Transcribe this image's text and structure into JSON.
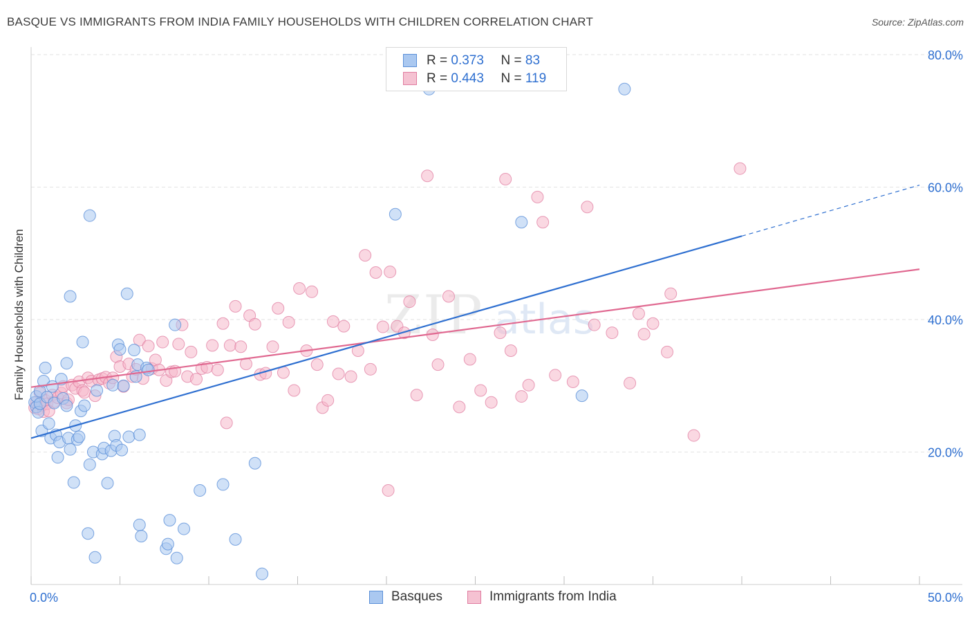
{
  "header": {
    "title": "BASQUE VS IMMIGRANTS FROM INDIA FAMILY HOUSEHOLDS WITH CHILDREN CORRELATION CHART",
    "source": "Source: ZipAtlas.com"
  },
  "watermark": {
    "zip": "ZIP",
    "atlas": "atlas"
  },
  "legend": {
    "r_label": "R =",
    "n_label": "N =",
    "basques": {
      "r": "0.373",
      "n": "83"
    },
    "india": {
      "r": "0.443",
      "n": "119"
    }
  },
  "bottom_legend": {
    "basques": "Basques",
    "india": "Immigrants from India"
  },
  "colors": {
    "basques_fill": "#aac8f0",
    "basques_stroke": "#5a8fd8",
    "basques_line": "#2e6fd0",
    "india_fill": "#f5b8cb",
    "india_stroke": "#e07ca0",
    "india_line": "#e06890",
    "axis_text": "#2e6fd0",
    "grid": "#e2e2e2"
  },
  "chart_data": {
    "type": "scatter",
    "title": "BASQUE VS IMMIGRANTS FROM INDIA FAMILY HOUSEHOLDS WITH CHILDREN CORRELATION CHART",
    "xlabel": "",
    "ylabel": "Family Households with Children",
    "xlim": [
      0,
      50
    ],
    "ylim": [
      0,
      80
    ],
    "x_tick_labels": [
      "0.0%",
      "50.0%"
    ],
    "y_ticks": [
      20,
      40,
      60,
      80
    ],
    "y_tick_labels": [
      "20.0%",
      "40.0%",
      "60.0%",
      "80.0%"
    ],
    "grid": true,
    "legend_position": "top-center",
    "series": [
      {
        "name": "Basques",
        "trend": {
          "x": [
            0,
            40
          ],
          "y": [
            22.1,
            52.6
          ],
          "dashed_to": [
            50,
            60.3
          ]
        },
        "points": [
          [
            0.2,
            27.5
          ],
          [
            0.3,
            26.8
          ],
          [
            0.3,
            28.4
          ],
          [
            0.4,
            26.0
          ],
          [
            0.5,
            27.3
          ],
          [
            0.5,
            29.2
          ],
          [
            0.6,
            23.2
          ],
          [
            0.7,
            30.7
          ],
          [
            0.8,
            32.7
          ],
          [
            0.9,
            28.3
          ],
          [
            1.0,
            24.3
          ],
          [
            1.1,
            22.1
          ],
          [
            1.2,
            29.9
          ],
          [
            1.3,
            27.4
          ],
          [
            1.4,
            22.6
          ],
          [
            1.5,
            19.2
          ],
          [
            1.6,
            21.5
          ],
          [
            1.7,
            31.0
          ],
          [
            1.8,
            28.1
          ],
          [
            2.0,
            33.4
          ],
          [
            2.0,
            27.0
          ],
          [
            2.1,
            22.1
          ],
          [
            2.2,
            43.5
          ],
          [
            2.2,
            20.4
          ],
          [
            2.4,
            15.4
          ],
          [
            2.5,
            24.0
          ],
          [
            2.6,
            21.9
          ],
          [
            2.7,
            22.3
          ],
          [
            2.8,
            26.2
          ],
          [
            2.9,
            36.6
          ],
          [
            3.0,
            27.0
          ],
          [
            3.2,
            7.7
          ],
          [
            3.3,
            55.7
          ],
          [
            3.3,
            18.1
          ],
          [
            3.5,
            20.0
          ],
          [
            3.6,
            4.1
          ],
          [
            3.7,
            29.3
          ],
          [
            4.0,
            19.7
          ],
          [
            4.1,
            20.6
          ],
          [
            4.3,
            15.3
          ],
          [
            4.5,
            20.2
          ],
          [
            4.6,
            30.1
          ],
          [
            4.7,
            22.4
          ],
          [
            4.8,
            21.0
          ],
          [
            4.9,
            36.2
          ],
          [
            5.0,
            35.5
          ],
          [
            5.1,
            20.3
          ],
          [
            5.2,
            30.0
          ],
          [
            5.4,
            43.9
          ],
          [
            5.5,
            22.3
          ],
          [
            5.8,
            35.4
          ],
          [
            5.9,
            31.4
          ],
          [
            6.0,
            33.2
          ],
          [
            6.1,
            22.6
          ],
          [
            6.1,
            9.0
          ],
          [
            6.2,
            7.3
          ],
          [
            6.5,
            32.7
          ],
          [
            6.6,
            32.4
          ],
          [
            7.6,
            5.4
          ],
          [
            7.7,
            6.1
          ],
          [
            7.8,
            9.7
          ],
          [
            8.1,
            39.2
          ],
          [
            8.2,
            4.0
          ],
          [
            8.6,
            8.4
          ],
          [
            9.5,
            14.2
          ],
          [
            10.8,
            15.1
          ],
          [
            11.5,
            6.8
          ],
          [
            12.6,
            18.3
          ],
          [
            13.0,
            1.6
          ],
          [
            20.5,
            55.9
          ],
          [
            22.4,
            74.8
          ],
          [
            27.6,
            54.7
          ],
          [
            31.0,
            28.5
          ],
          [
            33.4,
            74.8
          ]
        ]
      },
      {
        "name": "Immigrants from India",
        "trend": {
          "x": [
            0,
            50
          ],
          "y": [
            29.8,
            47.6
          ]
        },
        "points": [
          [
            0.2,
            26.7
          ],
          [
            0.3,
            27.5
          ],
          [
            0.4,
            26.5
          ],
          [
            0.5,
            28.9
          ],
          [
            0.6,
            27.0
          ],
          [
            0.7,
            26.1
          ],
          [
            0.8,
            27.8
          ],
          [
            0.9,
            27.3
          ],
          [
            1.0,
            26.2
          ],
          [
            1.2,
            28.6
          ],
          [
            1.3,
            27.6
          ],
          [
            1.5,
            28.2
          ],
          [
            1.7,
            28.9
          ],
          [
            1.8,
            29.9
          ],
          [
            2.0,
            27.4
          ],
          [
            2.1,
            27.9
          ],
          [
            2.3,
            30.1
          ],
          [
            2.5,
            29.6
          ],
          [
            2.7,
            30.6
          ],
          [
            2.9,
            29.3
          ],
          [
            3.0,
            29.0
          ],
          [
            3.2,
            31.2
          ],
          [
            3.4,
            30.7
          ],
          [
            3.6,
            28.5
          ],
          [
            3.8,
            30.9
          ],
          [
            4.0,
            31.1
          ],
          [
            4.2,
            31.3
          ],
          [
            4.4,
            30.4
          ],
          [
            4.6,
            31.2
          ],
          [
            4.8,
            34.4
          ],
          [
            5.0,
            32.9
          ],
          [
            5.2,
            29.9
          ],
          [
            5.5,
            33.3
          ],
          [
            5.7,
            31.4
          ],
          [
            5.9,
            32.5
          ],
          [
            6.1,
            36.9
          ],
          [
            6.3,
            31.1
          ],
          [
            6.6,
            36.0
          ],
          [
            6.8,
            32.6
          ],
          [
            7.0,
            33.9
          ],
          [
            7.2,
            32.4
          ],
          [
            7.4,
            36.6
          ],
          [
            7.6,
            30.8
          ],
          [
            7.9,
            32.1
          ],
          [
            8.1,
            32.2
          ],
          [
            8.3,
            36.3
          ],
          [
            8.5,
            39.2
          ],
          [
            8.8,
            31.4
          ],
          [
            9.0,
            35.1
          ],
          [
            9.3,
            31.0
          ],
          [
            9.6,
            32.6
          ],
          [
            9.9,
            32.8
          ],
          [
            10.2,
            36.1
          ],
          [
            10.5,
            32.4
          ],
          [
            10.8,
            39.4
          ],
          [
            11.0,
            24.4
          ],
          [
            11.2,
            36.1
          ],
          [
            11.5,
            42.0
          ],
          [
            11.8,
            35.9
          ],
          [
            12.1,
            33.3
          ],
          [
            12.3,
            40.6
          ],
          [
            12.6,
            39.3
          ],
          [
            12.9,
            31.7
          ],
          [
            13.2,
            31.9
          ],
          [
            13.6,
            35.9
          ],
          [
            13.9,
            41.7
          ],
          [
            14.2,
            32.0
          ],
          [
            14.5,
            39.6
          ],
          [
            14.8,
            29.3
          ],
          [
            15.1,
            44.7
          ],
          [
            15.5,
            35.3
          ],
          [
            15.8,
            44.2
          ],
          [
            16.1,
            33.2
          ],
          [
            16.4,
            26.7
          ],
          [
            16.7,
            27.8
          ],
          [
            17.0,
            39.7
          ],
          [
            17.3,
            31.8
          ],
          [
            17.6,
            39.0
          ],
          [
            18.0,
            31.4
          ],
          [
            18.4,
            35.3
          ],
          [
            18.8,
            49.7
          ],
          [
            19.1,
            32.5
          ],
          [
            19.4,
            47.1
          ],
          [
            19.8,
            38.9
          ],
          [
            20.2,
            47.2
          ],
          [
            20.6,
            39.0
          ],
          [
            21.0,
            38.0
          ],
          [
            21.3,
            42.7
          ],
          [
            21.7,
            28.6
          ],
          [
            22.3,
            61.7
          ],
          [
            22.6,
            37.7
          ],
          [
            22.9,
            33.2
          ],
          [
            23.5,
            43.5
          ],
          [
            24.1,
            26.8
          ],
          [
            24.7,
            34.0
          ],
          [
            25.3,
            29.3
          ],
          [
            25.9,
            27.5
          ],
          [
            26.4,
            38.0
          ],
          [
            26.7,
            61.2
          ],
          [
            27.0,
            35.3
          ],
          [
            27.6,
            28.4
          ],
          [
            28.0,
            30.1
          ],
          [
            28.5,
            58.5
          ],
          [
            28.8,
            54.7
          ],
          [
            29.5,
            31.6
          ],
          [
            30.5,
            30.6
          ],
          [
            31.3,
            57.0
          ],
          [
            31.7,
            39.2
          ],
          [
            32.7,
            38.0
          ],
          [
            33.7,
            30.4
          ],
          [
            34.2,
            40.9
          ],
          [
            35.0,
            39.4
          ],
          [
            35.8,
            35.1
          ],
          [
            37.3,
            22.5
          ],
          [
            39.9,
            62.8
          ],
          [
            20.1,
            14.2
          ],
          [
            34.5,
            37.8
          ],
          [
            36.0,
            43.9
          ]
        ]
      }
    ]
  }
}
